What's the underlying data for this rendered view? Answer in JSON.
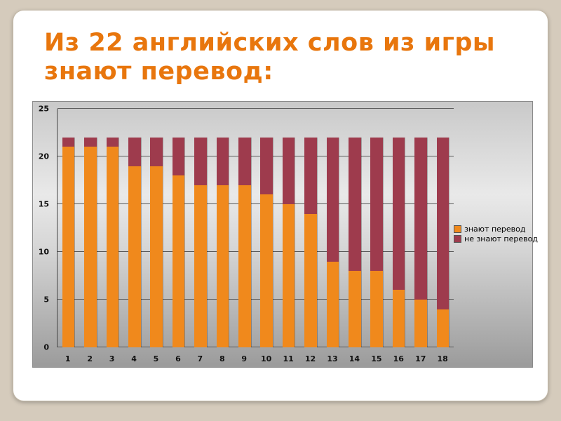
{
  "slide": {
    "title_line1": "Из 22 английских слов из игры",
    "title_line2": "знают перевод:",
    "title_color": "#e8760d"
  },
  "chart_data": {
    "type": "bar",
    "stacked": true,
    "title": "Из 22 английских слов из игры знают перевод:",
    "categories": [
      "1",
      "2",
      "3",
      "4",
      "5",
      "6",
      "7",
      "8",
      "9",
      "10",
      "11",
      "12",
      "13",
      "14",
      "15",
      "16",
      "17",
      "18"
    ],
    "series": [
      {
        "name": "знают перевод",
        "color": "#f0891c",
        "values": [
          21,
          21,
          21,
          19,
          19,
          18,
          17,
          17,
          17,
          16,
          15,
          14,
          9,
          8,
          8,
          6,
          5,
          4
        ]
      },
      {
        "name": "не знают перевод",
        "color": "#9e3b4d",
        "values": [
          1,
          1,
          1,
          3,
          3,
          4,
          5,
          5,
          5,
          6,
          7,
          8,
          13,
          14,
          14,
          16,
          17,
          18
        ]
      }
    ],
    "total_per_bar": 22,
    "xlabel": "",
    "ylabel": "",
    "ylim": [
      0,
      25
    ],
    "yticks": [
      0,
      5,
      10,
      15,
      20,
      25
    ],
    "grid": true,
    "legend_position": "right"
  }
}
